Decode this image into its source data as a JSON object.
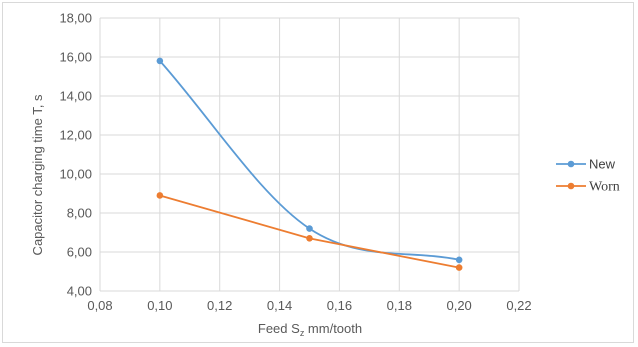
{
  "chart_data": {
    "type": "line",
    "title": "",
    "xlabel": "Feed S",
    "xlabel_sub": "z",
    "xlabel_suffix": " mm/tooth",
    "ylabel": "Capacitor charging time T, s",
    "xlim": [
      0.08,
      0.22
    ],
    "ylim": [
      4,
      18
    ],
    "x_ticks": [
      "0,08",
      "0,10",
      "0,12",
      "0,14",
      "0,16",
      "0,18",
      "0,20",
      "0,22"
    ],
    "y_ticks": [
      "4,00",
      "6,00",
      "8,00",
      "10,00",
      "12,00",
      "14,00",
      "16,00",
      "18,00"
    ],
    "grid": true,
    "legend_position": "right",
    "series": [
      {
        "name": "New",
        "color": "#5b9bd5",
        "smooth": true,
        "x": [
          0.1,
          0.15,
          0.2
        ],
        "y": [
          15.8,
          7.2,
          5.6
        ]
      },
      {
        "name": "Worn",
        "color": "#ed7d31",
        "smooth": false,
        "x": [
          0.1,
          0.15,
          0.2
        ],
        "y": [
          8.9,
          6.7,
          5.2
        ]
      }
    ]
  }
}
